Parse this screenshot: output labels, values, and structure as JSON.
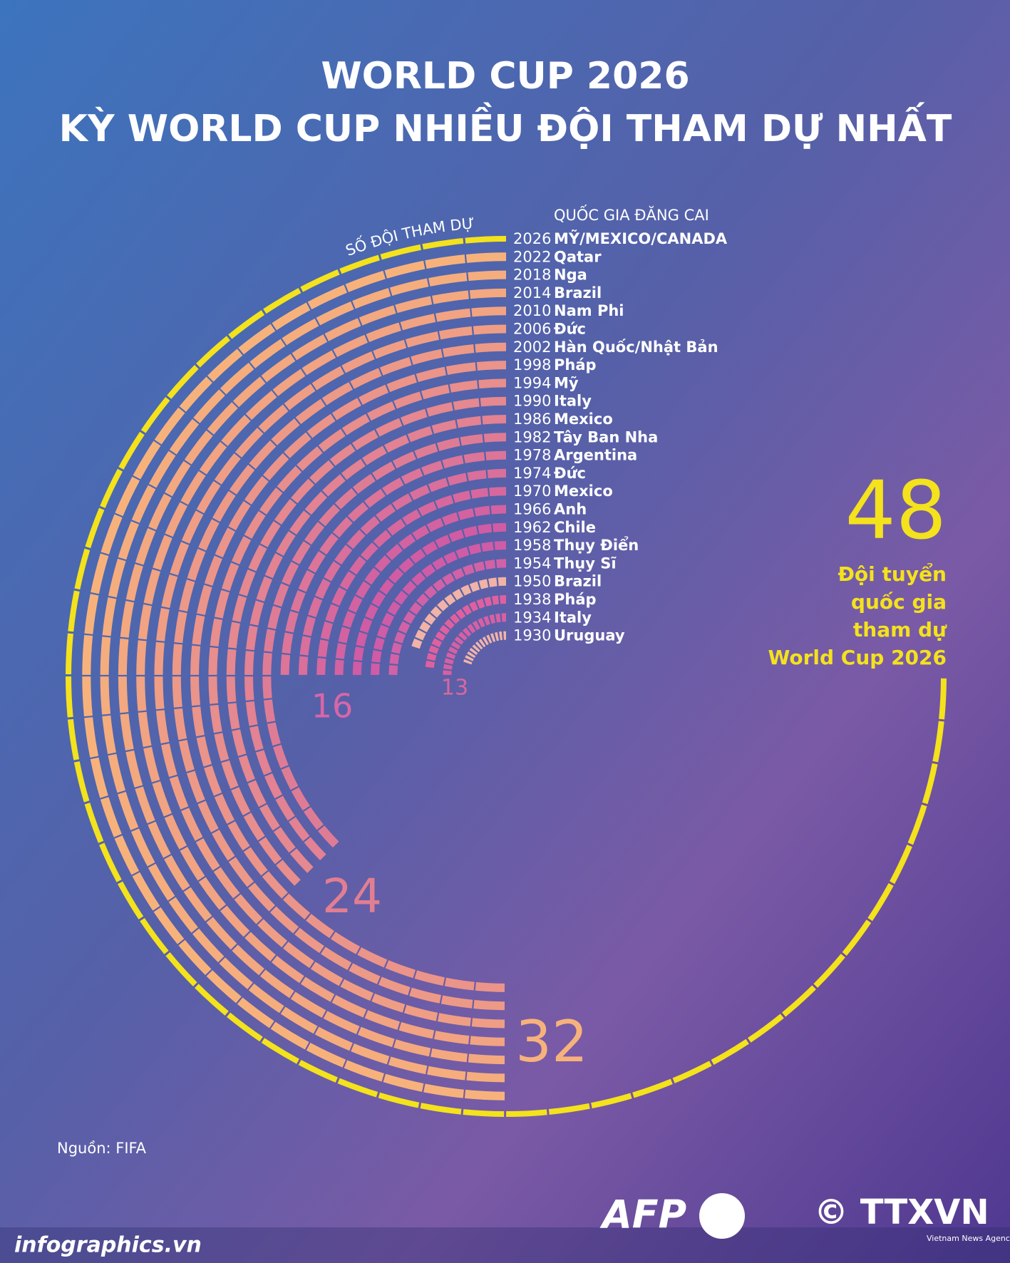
{
  "header": {
    "title_lines": [
      "WORLD CUP 2026",
      "KỲ WORLD CUP NHIỀU ĐỘI THAM DỰ NHẤT"
    ]
  },
  "chart_data": {
    "type": "radial_bar",
    "teams_label": "SỐ ĐỘI THAM DỰ",
    "hosts_label": "QUỐC GIA ĐĂNG CAI",
    "series": [
      {
        "year": "2026",
        "host": "MỸ/MEXICO/CANADA",
        "value": 48,
        "color": "#f4e21c"
      },
      {
        "year": "2022",
        "host": "Qatar",
        "value": 32,
        "color": "#f7b27c"
      },
      {
        "year": "2018",
        "host": "Nga",
        "value": 32,
        "color": "#f5ad7e"
      },
      {
        "year": "2014",
        "host": "Brazil",
        "value": 32,
        "color": "#f3a880"
      },
      {
        "year": "2010",
        "host": "Nam Phi",
        "value": 32,
        "color": "#f1a382"
      },
      {
        "year": "2006",
        "host": "Đức",
        "value": 32,
        "color": "#ef9e85"
      },
      {
        "year": "2002",
        "host": "Hàn Quốc/Nhật Bản",
        "value": 32,
        "color": "#ed9987"
      },
      {
        "year": "1998",
        "host": "Pháp",
        "value": 32,
        "color": "#eb948a"
      },
      {
        "year": "1994",
        "host": "Mỹ",
        "value": 24,
        "color": "#e88e8c"
      },
      {
        "year": "1990",
        "host": "Italy",
        "value": 24,
        "color": "#e5888f"
      },
      {
        "year": "1986",
        "host": "Mexico",
        "value": 24,
        "color": "#e28292"
      },
      {
        "year": "1982",
        "host": "Tây Ban Nha",
        "value": 24,
        "color": "#df7c95"
      },
      {
        "year": "1978",
        "host": "Argentina",
        "value": 16,
        "color": "#dc7598"
      },
      {
        "year": "1974",
        "host": "Đức",
        "value": 16,
        "color": "#d96f9b"
      },
      {
        "year": "1970",
        "host": "Mexico",
        "value": 16,
        "color": "#d6689e"
      },
      {
        "year": "1966",
        "host": "Anh",
        "value": 16,
        "color": "#d362a1"
      },
      {
        "year": "1962",
        "host": "Chile",
        "value": 16,
        "color": "#d05ca4"
      },
      {
        "year": "1958",
        "host": "Thụy Điển",
        "value": 16,
        "color": "#cf5ca6"
      },
      {
        "year": "1954",
        "host": "Thụy Sĩ",
        "value": 16,
        "color": "#d162a6"
      },
      {
        "year": "1950",
        "host": "Brazil",
        "value": 13,
        "color": "#f0b3a6"
      },
      {
        "year": "1938",
        "host": "Pháp",
        "value": 15,
        "color": "#e0609f"
      },
      {
        "year": "1934",
        "host": "Italy",
        "value": 16,
        "color": "#d660a3"
      },
      {
        "year": "1930",
        "host": "Uruguay",
        "value": 13,
        "color": "#f2b4a9"
      }
    ],
    "annotations": [
      {
        "text": "13",
        "color": "#d9679f"
      },
      {
        "text": "16",
        "color": "#d866a8"
      },
      {
        "text": "24",
        "color": "#e27e92"
      },
      {
        "text": "32",
        "color": "#f7b27c"
      }
    ],
    "highlight": {
      "number": "48",
      "lines": [
        "Đội tuyển",
        "quốc gia",
        "tham dự",
        "World Cup 2026"
      ],
      "color": "#f4e21c"
    },
    "source": "Nguồn: FIFA"
  },
  "footer": {
    "site": "infographics.vn",
    "afp": "AFP",
    "ttxvn": "© TTXVN",
    "agency": "Vietnam News Agency"
  }
}
